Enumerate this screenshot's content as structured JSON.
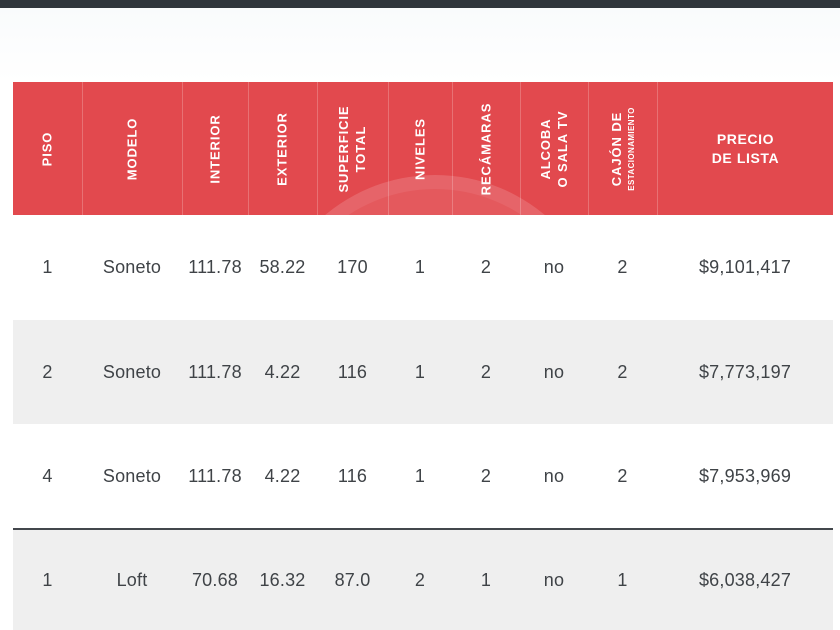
{
  "colors": {
    "header_bg": "#e2494e",
    "row_alt_bg": "#efefef",
    "top_bar": "#30363c",
    "divider": "#43474c",
    "cell_text": "#3f4347",
    "header_text": "#ffffff"
  },
  "table": {
    "columns": [
      {
        "id": "piso",
        "label": "PISO"
      },
      {
        "id": "modelo",
        "label": "MODELO"
      },
      {
        "id": "interior",
        "label": "INTERIOR"
      },
      {
        "id": "exterior",
        "label": "EXTERIOR"
      },
      {
        "id": "superficie_total",
        "label": "SUPERFICIE\nTOTAL"
      },
      {
        "id": "niveles",
        "label": "NIVELES"
      },
      {
        "id": "recamaras",
        "label": "RECÁMARAS"
      },
      {
        "id": "alcoba_o_sala_tv",
        "label": "ALCOBA\nO SALA TV"
      },
      {
        "id": "cajon_de_estacionamiento",
        "label": "CAJÓN DE",
        "sublabel": "ESTACIONAMIENTO"
      },
      {
        "id": "precio_de_lista",
        "label": "PRECIO\nDE LISTA"
      }
    ],
    "rows": [
      {
        "cells": [
          "1",
          "Soneto",
          "111.78",
          "58.22",
          "170",
          "1",
          "2",
          "no",
          "2",
          "$9,101,417"
        ]
      },
      {
        "cells": [
          "2",
          "Soneto",
          "111.78",
          "4.22",
          "116",
          "1",
          "2",
          "no",
          "2",
          "$7,773,197"
        ]
      },
      {
        "cells": [
          "4",
          "Soneto",
          "111.78",
          "4.22",
          "116",
          "1",
          "2",
          "no",
          "2",
          "$7,953,969"
        ]
      },
      {
        "cells": [
          "1",
          "Loft",
          "70.68",
          "16.32",
          "87.0",
          "2",
          "1",
          "no",
          "1",
          "$6,038,427"
        ]
      }
    ]
  }
}
